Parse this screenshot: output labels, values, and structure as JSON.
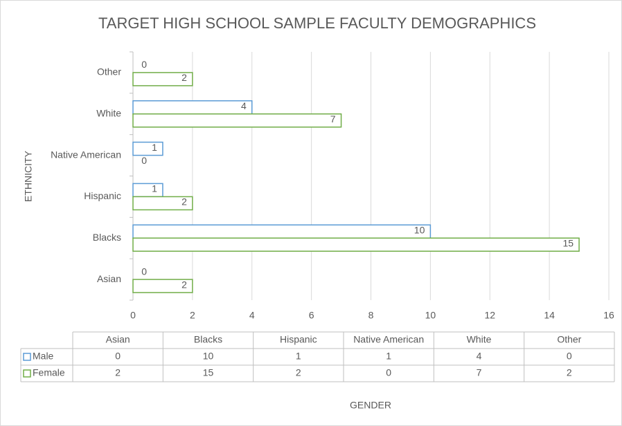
{
  "chart_data": {
    "type": "bar",
    "orientation": "horizontal",
    "title": "TARGET HIGH SCHOOL SAMPLE FACULTY DEMOGRAPHICS",
    "x_label": "GENDER",
    "y_label": "ETHNICITY",
    "categories": [
      "Asian",
      "Blacks",
      "Hispanic",
      "Native American",
      "White",
      "Other"
    ],
    "series": [
      {
        "name": "Male",
        "color": "#5b9bd5",
        "values": [
          0,
          10,
          1,
          1,
          4,
          0
        ]
      },
      {
        "name": "Female",
        "color": "#70ad47",
        "values": [
          2,
          15,
          2,
          0,
          7,
          2
        ]
      }
    ],
    "xlim": [
      0,
      16
    ],
    "xticks": [
      0,
      2,
      4,
      6,
      8,
      10,
      12,
      14,
      16
    ],
    "grid": true,
    "data_table": true
  }
}
